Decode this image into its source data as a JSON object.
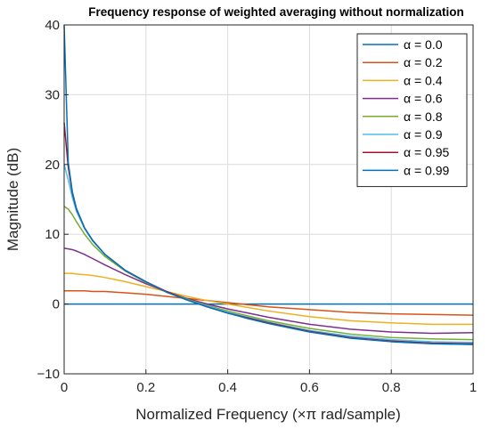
{
  "chart_data": {
    "type": "line",
    "title": "Frequency response of weighted averaging without normalization",
    "xlabel": "Normalized Frequency (×π rad/sample)",
    "ylabel": "Magnitude (dB)",
    "xlim": [
      0,
      1
    ],
    "ylim": [
      -10,
      40
    ],
    "xticks": [
      0,
      0.2,
      0.4,
      0.6,
      0.8,
      1
    ],
    "xticklabels": [
      "0",
      "0.2",
      "0.4",
      "0.6",
      "0.8",
      "1"
    ],
    "yticks": [
      -10,
      0,
      10,
      20,
      30,
      40
    ],
    "yticklabels": [
      "−10",
      "0",
      "10",
      "20",
      "30",
      "40"
    ],
    "grid": true,
    "legend_position": "top-right",
    "x": [
      0,
      0.01,
      0.02,
      0.03,
      0.05,
      0.07,
      0.1,
      0.15,
      0.2,
      0.25,
      0.3,
      0.35,
      0.4,
      0.45,
      0.5,
      0.6,
      0.7,
      0.8,
      0.9,
      1.0
    ],
    "series": [
      {
        "name": "α = 0.0",
        "color": "#0072BD",
        "values": [
          0,
          0,
          0,
          0,
          0,
          0,
          0,
          0,
          0,
          0,
          0,
          0,
          0,
          0,
          0,
          0,
          0,
          0,
          0,
          0
        ]
      },
      {
        "name": "α = 0.2",
        "color": "#D95319",
        "values": [
          1.9,
          1.9,
          1.9,
          1.9,
          1.9,
          1.8,
          1.8,
          1.6,
          1.4,
          1.1,
          0.8,
          0.5,
          0.2,
          -0.1,
          -0.4,
          -0.8,
          -1.2,
          -1.4,
          -1.5,
          -1.6
        ]
      },
      {
        "name": "α = 0.4",
        "color": "#EDB120",
        "values": [
          4.4,
          4.4,
          4.4,
          4.3,
          4.2,
          4.1,
          3.8,
          3.2,
          2.5,
          1.8,
          1.1,
          0.5,
          0.0,
          -0.5,
          -1.0,
          -1.8,
          -2.4,
          -2.7,
          -2.9,
          -2.9
        ]
      },
      {
        "name": "α = 0.6",
        "color": "#7E2F8E",
        "values": [
          8.0,
          7.9,
          7.8,
          7.6,
          7.1,
          6.5,
          5.6,
          4.2,
          2.9,
          1.8,
          0.8,
          0.0,
          -0.7,
          -1.3,
          -1.9,
          -2.9,
          -3.6,
          -4.0,
          -4.2,
          -4.1
        ]
      },
      {
        "name": "α = 0.8",
        "color": "#77AC30",
        "values": [
          14.0,
          13.6,
          12.8,
          11.8,
          10.0,
          8.5,
          6.8,
          4.7,
          3.1,
          1.8,
          0.7,
          -0.2,
          -1.0,
          -1.7,
          -2.4,
          -3.5,
          -4.3,
          -4.8,
          -5.0,
          -5.1
        ]
      },
      {
        "name": "α = 0.9",
        "color": "#4DBEEE",
        "values": [
          20.0,
          17.8,
          15.3,
          13.3,
          10.8,
          9.0,
          7.1,
          4.8,
          3.2,
          1.8,
          0.6,
          -0.3,
          -1.2,
          -1.9,
          -2.6,
          -3.8,
          -4.6,
          -5.1,
          -5.4,
          -5.5
        ]
      },
      {
        "name": "α = 0.95",
        "color": "#A2142F",
        "values": [
          26.0,
          19.6,
          15.9,
          13.6,
          10.9,
          9.1,
          7.1,
          4.8,
          3.2,
          1.8,
          0.6,
          -0.4,
          -1.3,
          -2.0,
          -2.7,
          -3.9,
          -4.8,
          -5.3,
          -5.6,
          -5.7
        ]
      },
      {
        "name": "α = 0.99",
        "color": "#0072BD",
        "values": [
          40.0,
          20.3,
          16.1,
          13.7,
          10.9,
          9.1,
          7.1,
          4.8,
          3.2,
          1.7,
          0.6,
          -0.4,
          -1.3,
          -2.1,
          -2.8,
          -4.0,
          -4.9,
          -5.4,
          -5.7,
          -5.8
        ]
      }
    ]
  }
}
